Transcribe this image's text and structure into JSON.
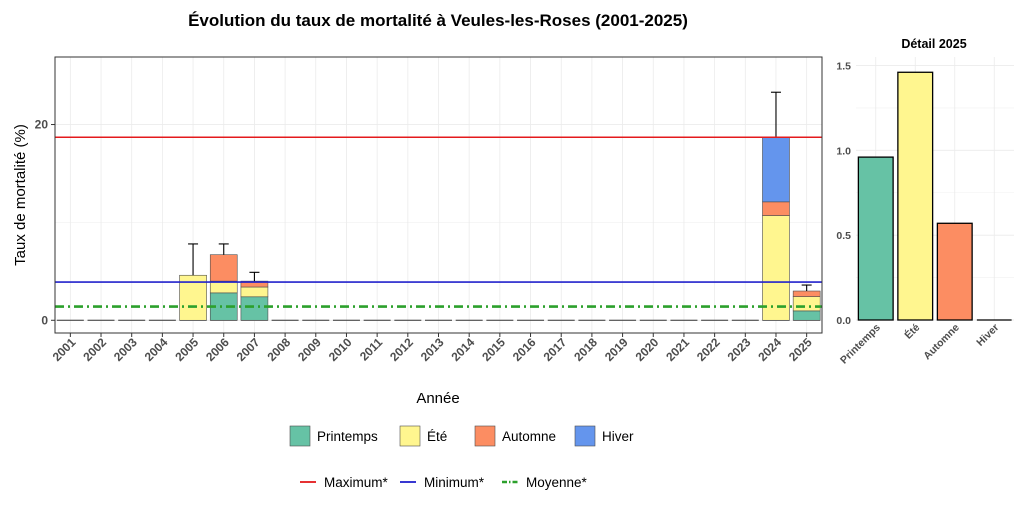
{
  "chart_data": [
    {
      "type": "bar",
      "stacked": true,
      "title": "Évolution du taux de mortalité à Veules-les-Roses (2001-2025)",
      "xlabel": "Année",
      "ylabel": "Taux de mortalité (%)",
      "ylim": [
        -1.3,
        26.9
      ],
      "yticks": [
        0,
        20
      ],
      "grid": true,
      "categories": [
        "2001",
        "2002",
        "2003",
        "2004",
        "2005",
        "2006",
        "2007",
        "2008",
        "2009",
        "2010",
        "2011",
        "2012",
        "2013",
        "2014",
        "2015",
        "2016",
        "2017",
        "2018",
        "2019",
        "2020",
        "2021",
        "2022",
        "2023",
        "2024",
        "2025"
      ],
      "series": [
        {
          "name": "Printemps",
          "color": "#66C2A5",
          "values": [
            0,
            0,
            0,
            0,
            0,
            2.8,
            2.4,
            0,
            0,
            0,
            0,
            0,
            0,
            0,
            0,
            0,
            0,
            0,
            0,
            0,
            0,
            0,
            0,
            0,
            0.96
          ]
        },
        {
          "name": "Été",
          "color": "#FFF68F",
          "values": [
            0,
            0,
            0,
            0,
            4.6,
            1.2,
            1.0,
            0,
            0,
            0,
            0,
            0,
            0,
            0,
            0,
            0,
            0,
            0,
            0,
            0,
            0,
            0,
            0,
            10.7,
            1.46
          ]
        },
        {
          "name": "Automne",
          "color": "#FC8D62",
          "values": [
            0,
            0,
            0,
            0,
            0,
            2.7,
            0.6,
            0,
            0,
            0,
            0,
            0,
            0,
            0,
            0,
            0,
            0,
            0,
            0,
            0,
            0,
            0,
            0,
            1.4,
            0.57
          ]
        },
        {
          "name": "Hiver",
          "color": "#6495ED",
          "values": [
            0,
            0,
            0,
            0,
            0,
            0,
            0,
            0,
            0,
            0,
            0,
            0,
            0,
            0,
            0,
            0,
            0,
            0,
            0,
            0,
            0,
            0,
            0,
            6.6,
            0
          ]
        }
      ],
      "error_upper": [
        0,
        0,
        0,
        0,
        7.8,
        7.8,
        4.9,
        0,
        0,
        0,
        0,
        0,
        0,
        0,
        0,
        0,
        0,
        0,
        0,
        0,
        0,
        0,
        0,
        23.3,
        3.6
      ],
      "reference_lines": [
        {
          "name": "Maximum*",
          "value": 18.7,
          "color": "#E41A1C",
          "style": "solid"
        },
        {
          "name": "Minimum*",
          "value": 3.9,
          "color": "#2222CC",
          "style": "solid"
        },
        {
          "name": "Moyenne*",
          "value": 1.4,
          "color": "#2CA02C",
          "style": "dashdot"
        }
      ]
    },
    {
      "type": "bar",
      "title": "Détail 2025",
      "categories": [
        "Printemps",
        "Été",
        "Automne",
        "Hiver"
      ],
      "values": [
        0.96,
        1.46,
        0.57,
        0
      ],
      "colors": [
        "#66C2A5",
        "#FFF68F",
        "#FC8D62",
        "#6495ED"
      ],
      "ylim": [
        0,
        1.55
      ],
      "yticks": [
        "0.0",
        "0.5",
        "1.0",
        "1.5"
      ],
      "grid": true
    }
  ]
}
